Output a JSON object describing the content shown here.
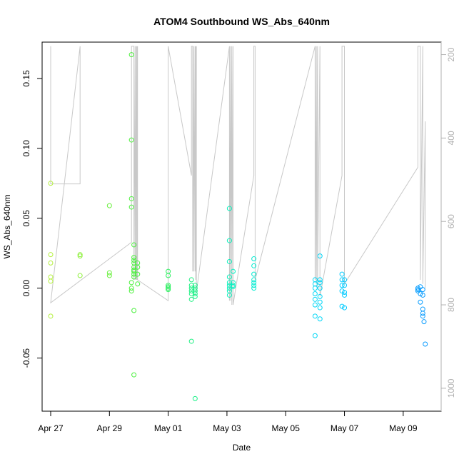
{
  "chart_data": {
    "type": "scatter",
    "title": "ATOM4 Southbound WS_Abs_640nm",
    "xlabel": "Date",
    "ylabel": "WS_Abs_640nm",
    "xlim": [
      "2021-04-26T17:00",
      "2021-05-10T07:00"
    ],
    "ylim": [
      -0.088,
      0.176
    ],
    "x_ticks": [
      {
        "date": "2021-04-27",
        "label": "Apr 27"
      },
      {
        "date": "2021-04-29",
        "label": "Apr 29"
      },
      {
        "date": "2021-05-01",
        "label": "May 01"
      },
      {
        "date": "2021-05-03",
        "label": "May 03"
      },
      {
        "date": "2021-05-05",
        "label": "May 05"
      },
      {
        "date": "2021-05-07",
        "label": "May 07"
      },
      {
        "date": "2021-05-09",
        "label": "May 09"
      }
    ],
    "y_ticks": [
      -0.05,
      0.0,
      0.05,
      0.1,
      0.15
    ],
    "y_tick_labels": [
      "-0.05",
      "0.00",
      "0.05",
      "0.10",
      "0.15"
    ],
    "y2_ticks": [
      200,
      400,
      600,
      800,
      1000
    ],
    "y2_tick_labels": [
      "200",
      "400",
      "600",
      "800",
      "1000"
    ],
    "y2lim": [
      1055,
      170
    ],
    "y2_reversed": true,
    "y2_color": "#b0b0b0",
    "grid": false,
    "legend": "none",
    "marker_color_gradient": [
      "#b4f03c",
      "#3cf03c",
      "#00f0c8",
      "#00d2ff",
      "#0a9bff"
    ],
    "series": [
      {
        "marker": "open-circle",
        "points": [
          [
            "2021-04-27T00:00",
            0.075
          ],
          [
            "2021-04-27T00:00",
            0.024
          ],
          [
            "2021-04-27T00:00",
            0.018
          ],
          [
            "2021-04-27T00:00",
            0.008
          ],
          [
            "2021-04-27T00:00",
            0.005
          ],
          [
            "2021-04-27T00:00",
            -0.02
          ],
          [
            "2021-04-28T00:00",
            0.024
          ],
          [
            "2021-04-28T00:00",
            0.023
          ],
          [
            "2021-04-28T00:00",
            0.009
          ],
          [
            "2021-04-29T00:00",
            0.059
          ],
          [
            "2021-04-29T00:00",
            0.011
          ],
          [
            "2021-04-29T00:00",
            0.009
          ],
          [
            "2021-04-29T18:00",
            0.167
          ],
          [
            "2021-04-29T18:00",
            0.106
          ],
          [
            "2021-04-29T18:00",
            0.064
          ],
          [
            "2021-04-29T18:00",
            0.058
          ],
          [
            "2021-04-29T18:00",
            0.004
          ],
          [
            "2021-04-29T18:00",
            0.0
          ],
          [
            "2021-04-29T18:00",
            -0.002
          ],
          [
            "2021-04-29T20:00",
            0.031
          ],
          [
            "2021-04-29T20:00",
            0.022
          ],
          [
            "2021-04-29T20:00",
            0.02
          ],
          [
            "2021-04-29T20:00",
            0.018
          ],
          [
            "2021-04-29T20:00",
            0.015
          ],
          [
            "2021-04-29T20:00",
            0.013
          ],
          [
            "2021-04-29T20:00",
            0.012
          ],
          [
            "2021-04-29T20:00",
            0.01
          ],
          [
            "2021-04-29T20:00",
            0.008
          ],
          [
            "2021-04-29T20:00",
            -0.016
          ],
          [
            "2021-04-29T20:00",
            -0.062
          ],
          [
            "2021-04-29T23:00",
            0.018
          ],
          [
            "2021-04-29T23:00",
            0.015
          ],
          [
            "2021-04-29T23:00",
            0.01
          ],
          [
            "2021-04-29T23:00",
            0.003
          ],
          [
            "2021-05-01T00:00",
            0.012
          ],
          [
            "2021-05-01T00:00",
            0.009
          ],
          [
            "2021-05-01T00:00",
            0.002
          ],
          [
            "2021-05-01T00:00",
            0.001
          ],
          [
            "2021-05-01T00:00",
            0.0
          ],
          [
            "2021-05-01T00:00",
            -0.001
          ],
          [
            "2021-05-01T19:00",
            0.006
          ],
          [
            "2021-05-01T19:00",
            0.002
          ],
          [
            "2021-05-01T19:00",
            0.0
          ],
          [
            "2021-05-01T19:00",
            -0.002
          ],
          [
            "2021-05-01T19:00",
            -0.004
          ],
          [
            "2021-05-01T19:00",
            -0.008
          ],
          [
            "2021-05-01T19:00",
            -0.038
          ],
          [
            "2021-05-01T22:00",
            0.002
          ],
          [
            "2021-05-01T22:00",
            0.0
          ],
          [
            "2021-05-01T22:00",
            -0.002
          ],
          [
            "2021-05-01T22:00",
            -0.004
          ],
          [
            "2021-05-01T22:00",
            -0.006
          ],
          [
            "2021-05-01T22:00",
            -0.079
          ],
          [
            "2021-05-03T02:00",
            0.057
          ],
          [
            "2021-05-03T02:00",
            0.034
          ],
          [
            "2021-05-03T02:00",
            0.019
          ],
          [
            "2021-05-03T02:00",
            0.008
          ],
          [
            "2021-05-03T02:00",
            0.004
          ],
          [
            "2021-05-03T02:00",
            0.002
          ],
          [
            "2021-05-03T02:00",
            0.0
          ],
          [
            "2021-05-03T02:00",
            -0.002
          ],
          [
            "2021-05-03T02:00",
            -0.005
          ],
          [
            "2021-05-03T05:00",
            0.012
          ],
          [
            "2021-05-03T05:00",
            0.004
          ],
          [
            "2021-05-03T05:00",
            0.002
          ],
          [
            "2021-05-03T05:00",
            0.001
          ],
          [
            "2021-05-03T22:00",
            0.021
          ],
          [
            "2021-05-03T22:00",
            0.016
          ],
          [
            "2021-05-03T22:00",
            0.01
          ],
          [
            "2021-05-03T22:00",
            0.006
          ],
          [
            "2021-05-03T22:00",
            0.004
          ],
          [
            "2021-05-03T22:00",
            0.002
          ],
          [
            "2021-05-03T22:00",
            0.0
          ],
          [
            "2021-05-06T00:00",
            0.006
          ],
          [
            "2021-05-06T00:00",
            0.003
          ],
          [
            "2021-05-06T00:00",
            0.0
          ],
          [
            "2021-05-06T00:00",
            -0.004
          ],
          [
            "2021-05-06T00:00",
            -0.008
          ],
          [
            "2021-05-06T00:00",
            -0.012
          ],
          [
            "2021-05-06T00:00",
            -0.02
          ],
          [
            "2021-05-06T00:00",
            -0.034
          ],
          [
            "2021-05-06T04:00",
            0.023
          ],
          [
            "2021-05-06T04:00",
            0.006
          ],
          [
            "2021-05-06T04:00",
            0.004
          ],
          [
            "2021-05-06T04:00",
            0.0
          ],
          [
            "2021-05-06T04:00",
            -0.006
          ],
          [
            "2021-05-06T04:00",
            -0.01
          ],
          [
            "2021-05-06T04:00",
            -0.014
          ],
          [
            "2021-05-06T04:00",
            -0.022
          ],
          [
            "2021-05-06T22:00",
            0.01
          ],
          [
            "2021-05-06T22:00",
            0.006
          ],
          [
            "2021-05-06T22:00",
            0.002
          ],
          [
            "2021-05-06T22:00",
            -0.002
          ],
          [
            "2021-05-06T22:00",
            -0.013
          ],
          [
            "2021-05-07T00:00",
            0.006
          ],
          [
            "2021-05-07T00:00",
            0.002
          ],
          [
            "2021-05-07T00:00",
            -0.003
          ],
          [
            "2021-05-07T00:00",
            -0.005
          ],
          [
            "2021-05-07T00:00",
            -0.014
          ],
          [
            "2021-05-09T12:00",
            0.0
          ],
          [
            "2021-05-09T12:00",
            -0.001
          ],
          [
            "2021-05-09T12:00",
            -0.002
          ],
          [
            "2021-05-09T14:00",
            0.001
          ],
          [
            "2021-05-09T14:00",
            -0.004
          ],
          [
            "2021-05-09T14:00",
            -0.01
          ],
          [
            "2021-05-09T16:00",
            -0.001
          ],
          [
            "2021-05-09T16:00",
            -0.005
          ],
          [
            "2021-05-09T16:00",
            -0.015
          ],
          [
            "2021-05-09T16:00",
            -0.018
          ],
          [
            "2021-05-09T16:00",
            -0.02
          ],
          [
            "2021-05-09T17:00",
            -0.024
          ],
          [
            "2021-05-09T18:00",
            -0.04
          ]
        ]
      },
      {
        "axis": "y2",
        "style": "line",
        "color": "#c8c8c8",
        "points": [
          [
            "2021-04-27T00:00",
            180
          ],
          [
            "2021-04-27T00:00",
            510
          ],
          [
            "2021-04-28T00:00",
            510
          ],
          [
            "2021-04-28T00:00",
            180
          ],
          [
            "2021-04-28T00:00",
            180
          ],
          [
            "2021-04-27T00:00",
            795
          ],
          [
            "2021-04-29T18:00",
            650
          ],
          [
            "2021-04-29T18:00",
            180
          ],
          [
            "2021-04-29T20:00",
            180
          ],
          [
            "2021-04-29T20:00",
            740
          ],
          [
            "2021-04-29T21:00",
            180
          ],
          [
            "2021-04-29T21:00",
            740
          ],
          [
            "2021-04-29T22:00",
            180
          ],
          [
            "2021-04-29T22:00",
            740
          ],
          [
            "2021-04-29T22:30",
            180
          ],
          [
            "2021-04-29T22:30",
            740
          ],
          [
            "2021-04-29T23:00",
            180
          ],
          [
            "2021-04-29T23:00",
            740
          ],
          [
            "2021-05-01T00:00",
            790
          ],
          [
            "2021-05-01T00:00",
            180
          ],
          [
            "2021-05-01T19:00",
            490
          ],
          [
            "2021-05-01T19:00",
            180
          ],
          [
            "2021-05-01T20:00",
            180
          ],
          [
            "2021-05-01T20:00",
            720
          ],
          [
            "2021-05-01T21:00",
            180
          ],
          [
            "2021-05-01T21:00",
            720
          ],
          [
            "2021-05-01T22:00",
            180
          ],
          [
            "2021-05-01T22:00",
            720
          ],
          [
            "2021-05-01T22:30",
            180
          ],
          [
            "2021-05-01T22:30",
            740
          ],
          [
            "2021-05-01T23:00",
            180
          ],
          [
            "2021-05-01T23:00",
            770
          ],
          [
            "2021-05-03T02:00",
            180
          ],
          [
            "2021-05-03T02:00",
            790
          ],
          [
            "2021-05-03T03:00",
            180
          ],
          [
            "2021-05-03T03:00",
            790
          ],
          [
            "2021-05-03T04:00",
            180
          ],
          [
            "2021-05-03T04:00",
            800
          ],
          [
            "2021-05-03T05:00",
            180
          ],
          [
            "2021-05-03T05:00",
            800
          ],
          [
            "2021-05-03T22:00",
            490
          ],
          [
            "2021-05-03T22:00",
            180
          ],
          [
            "2021-05-03T23:00",
            180
          ],
          [
            "2021-05-03T23:00",
            740
          ],
          [
            "2021-05-06T00:00",
            180
          ],
          [
            "2021-05-06T00:00",
            740
          ],
          [
            "2021-05-06T01:00",
            180
          ],
          [
            "2021-05-06T01:00",
            750
          ],
          [
            "2021-05-06T02:00",
            180
          ],
          [
            "2021-05-06T02:00",
            760
          ],
          [
            "2021-05-06T04:00",
            180
          ],
          [
            "2021-05-06T04:00",
            780
          ],
          [
            "2021-05-06T22:00",
            490
          ],
          [
            "2021-05-06T22:00",
            180
          ],
          [
            "2021-05-07T00:00",
            180
          ],
          [
            "2021-05-07T00:00",
            750
          ],
          [
            "2021-05-09T12:00",
            470
          ],
          [
            "2021-05-09T12:00",
            180
          ],
          [
            "2021-05-09T14:00",
            180
          ],
          [
            "2021-05-09T14:00",
            740
          ],
          [
            "2021-05-09T16:00",
            180
          ],
          [
            "2021-05-09T16:00",
            750
          ],
          [
            "2021-05-09T18:00",
            360
          ],
          [
            "2021-05-09T18:00",
            760
          ]
        ]
      }
    ]
  }
}
